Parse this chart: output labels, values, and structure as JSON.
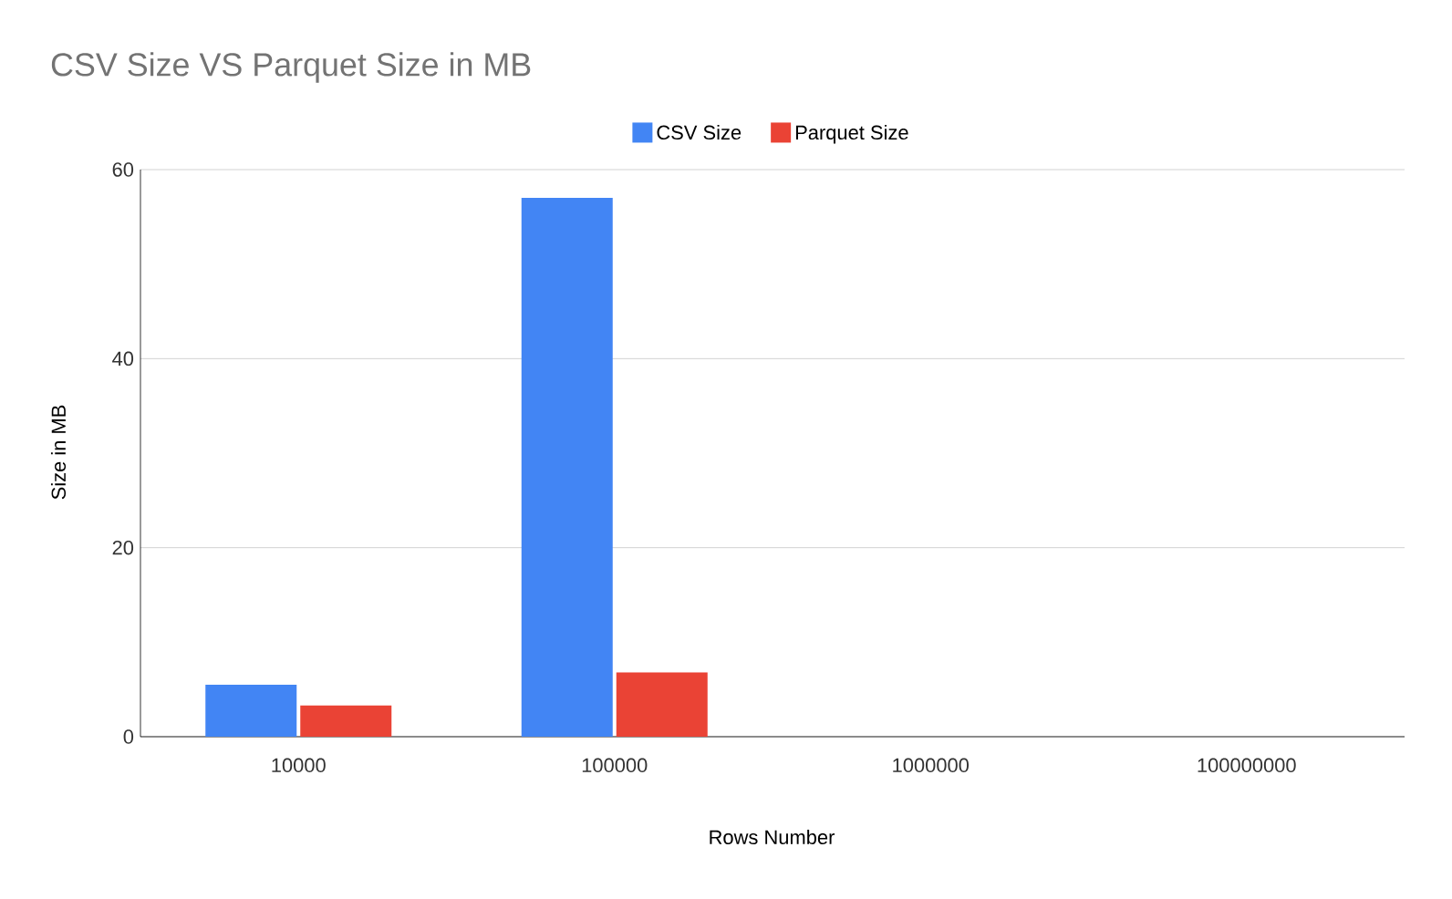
{
  "chart_data": {
    "type": "bar",
    "title": "CSV Size VS Parquet Size in MB",
    "xlabel": "Rows Number",
    "ylabel": "Size in MB",
    "categories": [
      "10000",
      "100000",
      "1000000",
      "100000000"
    ],
    "series": [
      {
        "name": "CSV Size",
        "color": "#4285f4",
        "values": [
          5.5,
          57.0,
          null,
          null
        ]
      },
      {
        "name": "Parquet Size",
        "color": "#ea4335",
        "values": [
          3.3,
          6.8,
          null,
          null
        ]
      }
    ],
    "ylim": [
      0,
      60
    ],
    "yticks": [
      0,
      20,
      40,
      60
    ],
    "grid": "y",
    "legend": "top"
  }
}
